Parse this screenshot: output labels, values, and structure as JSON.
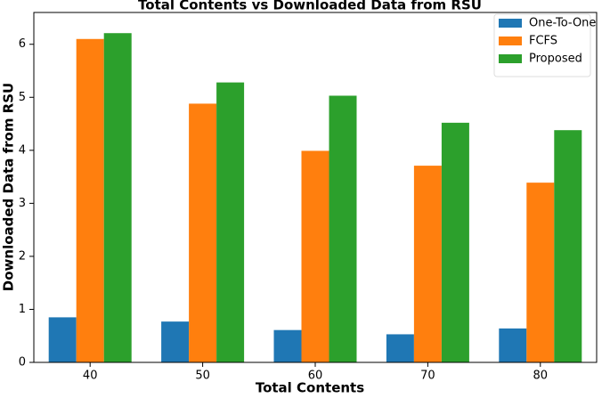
{
  "chart_data": {
    "type": "bar",
    "title": "Total Contents vs Downloaded Data from RSU",
    "x_label": "Total Contents",
    "y_label": "Downloaded Data from RSU",
    "categories": [
      "40",
      "50",
      "60",
      "70",
      "80"
    ],
    "series": [
      {
        "name": "One-To-One",
        "color": "#1f77b4",
        "values": [
          0.85,
          0.77,
          0.61,
          0.53,
          0.64
        ]
      },
      {
        "name": "FCFS",
        "color": "#ff7f0e",
        "values": [
          6.1,
          4.88,
          3.99,
          3.71,
          3.39
        ]
      },
      {
        "name": "Proposed",
        "color": "#2ca02c",
        "values": [
          6.21,
          5.28,
          5.03,
          4.52,
          4.38
        ]
      }
    ],
    "ylim": [
      0,
      6.6
    ],
    "yticks": [
      0,
      1,
      2,
      3,
      4,
      5,
      6
    ],
    "legend": "upper right"
  }
}
